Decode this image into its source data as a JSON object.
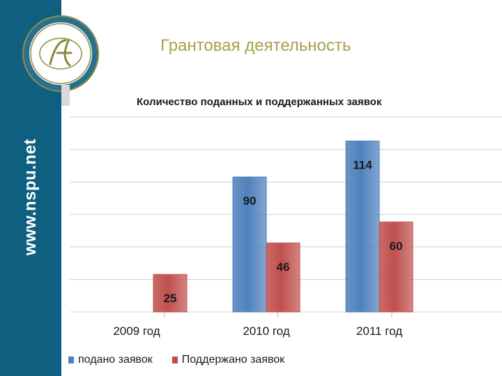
{
  "sidebar": {
    "site": "www.nspu.net"
  },
  "slide": {
    "title": "Грантовая деятельность"
  },
  "colors": {
    "sidebar": "#0f5f80",
    "series1": "#4f81bd",
    "series2": "#c0504d",
    "title": "#a8a04c"
  },
  "logo": {
    "icon": "university-seal-icon"
  },
  "chart_data": {
    "type": "bar",
    "title": "Количество поданных и поддержанных заявок",
    "categories": [
      "2009 год",
      "2010 год",
      "2011 год"
    ],
    "series": [
      {
        "name": "подано заявок",
        "values": [
          null,
          90,
          114
        ]
      },
      {
        "name": "Поддержано заявок",
        "values": [
          25,
          46,
          60
        ]
      }
    ],
    "ylim": [
      0,
      130
    ],
    "grid": true,
    "legend": "bottom-left"
  }
}
